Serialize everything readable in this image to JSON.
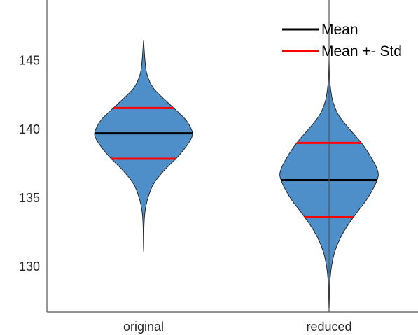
{
  "chart_data": {
    "type": "violin",
    "title": "",
    "xlabel": "",
    "ylabel": "",
    "categories": [
      "original",
      "reduced"
    ],
    "ylim": [
      126.7,
      148.9
    ],
    "yticks": [
      130,
      135,
      140,
      145
    ],
    "grid": false,
    "legend_position": "top-right",
    "colors": {
      "fill": "#4f8fc9",
      "outline": "#1a1a1a",
      "mean_line": "#000000",
      "std_line": "#ff0000",
      "axis": "#555555"
    },
    "legend": [
      {
        "label": "Mean",
        "color": "#000000"
      },
      {
        "label": "Mean +- Std",
        "color": "#ff0000"
      }
    ],
    "series": [
      {
        "category": "original",
        "mean": 139.7,
        "std": 1.85,
        "min": 131.1,
        "max": 146.5,
        "density": [
          [
            131.1,
            0.0
          ],
          [
            133.0,
            0.01
          ],
          [
            134.0,
            0.03
          ],
          [
            135.0,
            0.09
          ],
          [
            136.0,
            0.2
          ],
          [
            137.0,
            0.42
          ],
          [
            138.0,
            0.7
          ],
          [
            139.0,
            0.92
          ],
          [
            139.7,
            1.0
          ],
          [
            140.5,
            0.9
          ],
          [
            141.0,
            0.78
          ],
          [
            142.0,
            0.48
          ],
          [
            143.0,
            0.2
          ],
          [
            144.0,
            0.07
          ],
          [
            145.0,
            0.03
          ],
          [
            146.0,
            0.01
          ],
          [
            146.5,
            0.0
          ]
        ]
      },
      {
        "category": "reduced",
        "mean": 136.3,
        "std": 2.7,
        "min": 126.7,
        "max": 145.3,
        "density": [
          [
            126.7,
            0.0
          ],
          [
            128.0,
            0.01
          ],
          [
            129.0,
            0.02
          ],
          [
            130.0,
            0.05
          ],
          [
            131.0,
            0.11
          ],
          [
            132.0,
            0.22
          ],
          [
            133.0,
            0.38
          ],
          [
            134.0,
            0.58
          ],
          [
            135.0,
            0.79
          ],
          [
            136.3,
            0.98
          ],
          [
            137.0,
            0.99
          ],
          [
            138.0,
            0.85
          ],
          [
            139.0,
            0.66
          ],
          [
            140.0,
            0.42
          ],
          [
            141.0,
            0.2
          ],
          [
            142.0,
            0.08
          ],
          [
            143.0,
            0.03
          ],
          [
            144.0,
            0.01
          ],
          [
            145.3,
            0.0
          ]
        ]
      }
    ]
  }
}
